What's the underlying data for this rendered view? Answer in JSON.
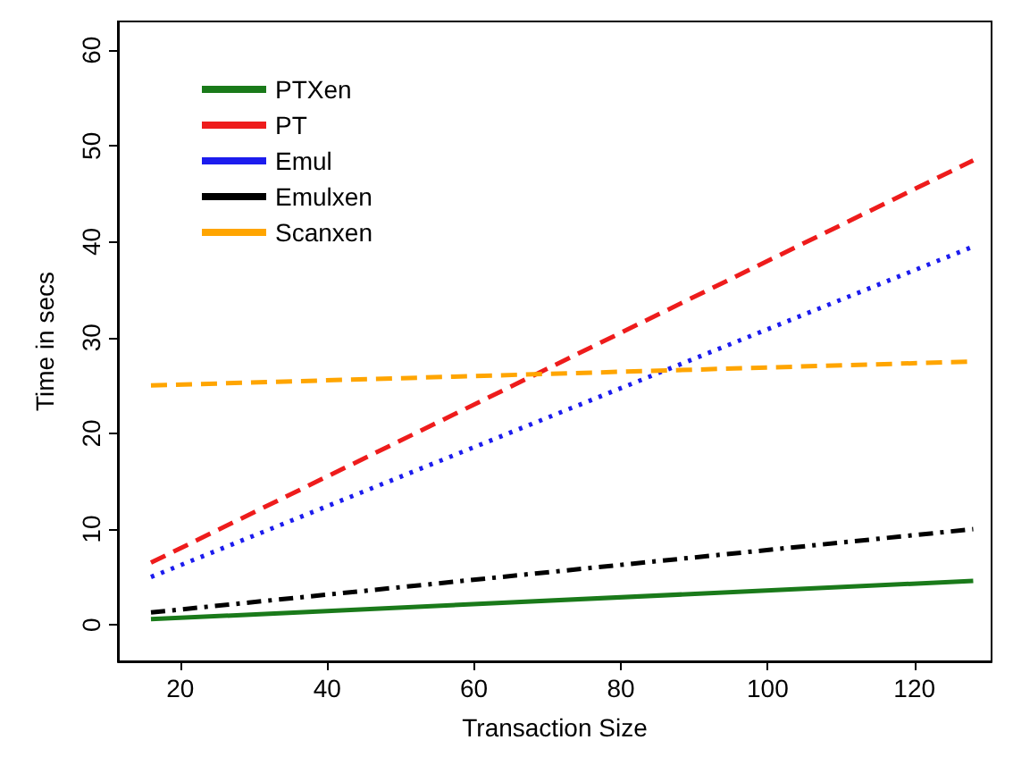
{
  "chart_data": {
    "type": "line",
    "xlabel": "Transaction Size",
    "ylabel": "Time in secs",
    "x": [
      16,
      128
    ],
    "series": [
      {
        "name": "PTXen",
        "color": "#1a7a1a",
        "values": [
          0.6,
          4.6
        ],
        "line_style": "solid"
      },
      {
        "name": "PT",
        "color": "#ee1c1c",
        "values": [
          6.5,
          48.5
        ],
        "line_style": "dashed"
      },
      {
        "name": "Emul",
        "color": "#1c1cee",
        "values": [
          5,
          39.5
        ],
        "line_style": "dotted"
      },
      {
        "name": "Emulxen",
        "color": "#000000",
        "values": [
          1.3,
          10
        ],
        "line_style": "dashdot"
      },
      {
        "name": "Scanxen",
        "color": "#ffa500",
        "values": [
          25,
          27.5
        ],
        "line_style": "dashed"
      }
    ],
    "xlim": [
      11.5,
      130.5
    ],
    "ylim": [
      -3.8,
      63
    ],
    "xticks": [
      20,
      40,
      60,
      80,
      100,
      120
    ],
    "yticks": [
      0,
      10,
      20,
      30,
      40,
      50,
      60
    ],
    "grid": false,
    "legend": "top left",
    "marker": "none"
  }
}
